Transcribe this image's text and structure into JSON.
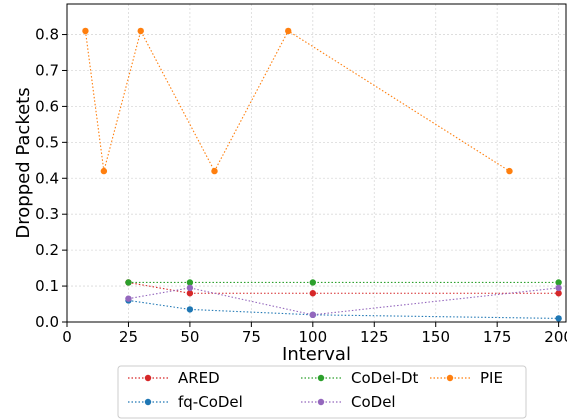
{
  "chart_data": {
    "type": "line",
    "title": "",
    "xlabel": "Interval",
    "ylabel": "Dropped Packets",
    "xlim": [
      0,
      203
    ],
    "ylim": [
      0,
      0.885
    ],
    "xticks": [
      0,
      25,
      50,
      75,
      100,
      125,
      150,
      175,
      200
    ],
    "yticks": [
      0.0,
      0.1,
      0.2,
      0.3,
      0.4,
      0.5,
      0.6,
      0.7,
      0.8
    ],
    "ytick_labels": [
      "0.0",
      "0.1",
      "0.2",
      "0.3",
      "0.4",
      "0.5",
      "0.6",
      "0.7",
      "0.8"
    ],
    "grid": true,
    "line_style": "dotted",
    "legend_placement": "below plot, centered, 3 columns",
    "series": [
      {
        "name": "ARED",
        "color": "#d62728",
        "x": [
          25,
          50,
          100,
          200
        ],
        "y": [
          0.11,
          0.08,
          0.08,
          0.08
        ]
      },
      {
        "name": "fq-CoDel",
        "color": "#1f77b4",
        "x": [
          25,
          50,
          100,
          200
        ],
        "y": [
          0.06,
          0.035,
          0.02,
          0.01
        ]
      },
      {
        "name": "CoDel-Dt",
        "color": "#2ca02c",
        "x": [
          25,
          50,
          100,
          200
        ],
        "y": [
          0.11,
          0.11,
          0.11,
          0.11
        ]
      },
      {
        "name": "CoDel",
        "color": "#9467bd",
        "x": [
          25,
          50,
          100,
          200
        ],
        "y": [
          0.065,
          0.095,
          0.02,
          0.095
        ]
      },
      {
        "name": "PIE",
        "color": "#ff7f0e",
        "x": [
          7.5,
          15,
          30,
          60,
          90,
          180
        ],
        "y": [
          0.81,
          0.42,
          0.81,
          0.42,
          0.81,
          0.42
        ]
      }
    ]
  }
}
